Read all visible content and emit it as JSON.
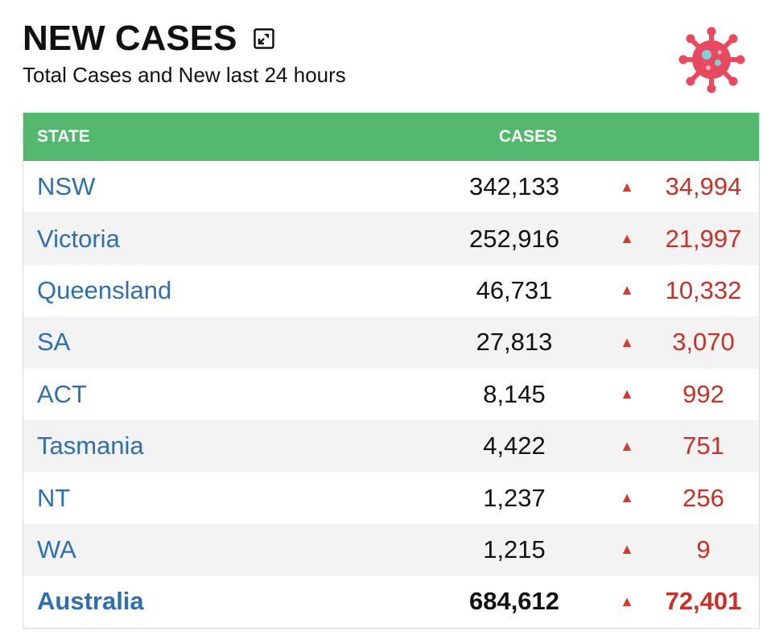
{
  "header": {
    "title": "NEW CASES",
    "subtitle": "Total Cases and New last 24 hours",
    "expand_icon": "expand-icon",
    "virus_icon": "virus-icon"
  },
  "table": {
    "columns": [
      "STATE",
      "CASES"
    ],
    "rows": [
      {
        "state": "NSW",
        "cases": "342,133",
        "new": "34,994"
      },
      {
        "state": "Victoria",
        "cases": "252,916",
        "new": "21,997"
      },
      {
        "state": "Queensland",
        "cases": "46,731",
        "new": "10,332"
      },
      {
        "state": "SA",
        "cases": "27,813",
        "new": "3,070"
      },
      {
        "state": "ACT",
        "cases": "8,145",
        "new": "992"
      },
      {
        "state": "Tasmania",
        "cases": "4,422",
        "new": "751"
      },
      {
        "state": "NT",
        "cases": "1,237",
        "new": "256"
      },
      {
        "state": "WA",
        "cases": "1,215",
        "new": "9"
      },
      {
        "state": "Australia",
        "cases": "684,612",
        "new": "72,401"
      }
    ]
  },
  "colors": {
    "header_green": "#55b86f",
    "state_blue": "#2f6fb0",
    "increase_red": "#c8302a",
    "virus_pink": "#e8495f"
  }
}
